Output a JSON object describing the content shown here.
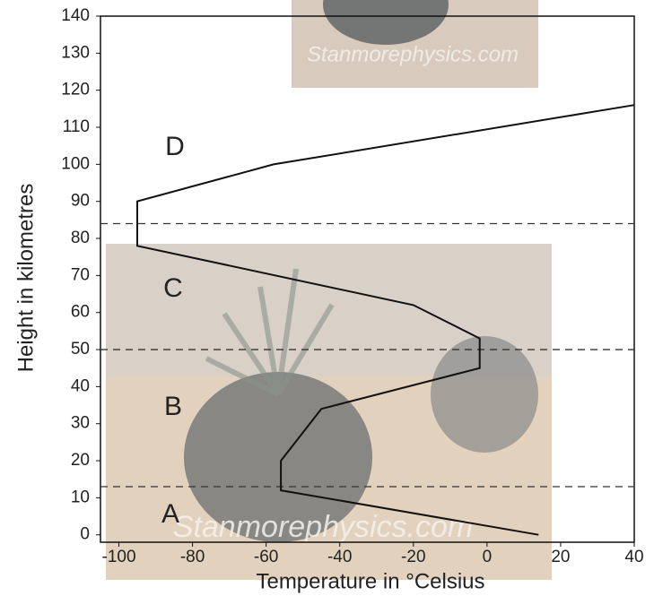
{
  "chart_data": {
    "type": "line",
    "xlabel": "Temperature in °Celsius",
    "ylabel": "Height in kilometres",
    "xlim": [
      -105,
      40
    ],
    "xticks": [
      -100,
      -80,
      -60,
      -40,
      -20,
      0,
      20,
      40
    ],
    "ylim": [
      -2,
      140
    ],
    "yticks": [
      0,
      10,
      20,
      30,
      40,
      50,
      60,
      70,
      80,
      90,
      100,
      110,
      120,
      130,
      140
    ],
    "series": [
      {
        "color": "#111111",
        "x": [
          14,
          -56,
          -56,
          -45,
          -2,
          -2,
          -20,
          -95,
          -95,
          -58,
          40
        ],
        "values": [
          0,
          12,
          20,
          34,
          45,
          53,
          62,
          78,
          90,
          100,
          116
        ]
      }
    ],
    "reference_lines": [
      13,
      50,
      84
    ],
    "annotations": [
      "A",
      "B",
      "C",
      "D"
    ],
    "watermark": "Stanmorephysics.com"
  }
}
